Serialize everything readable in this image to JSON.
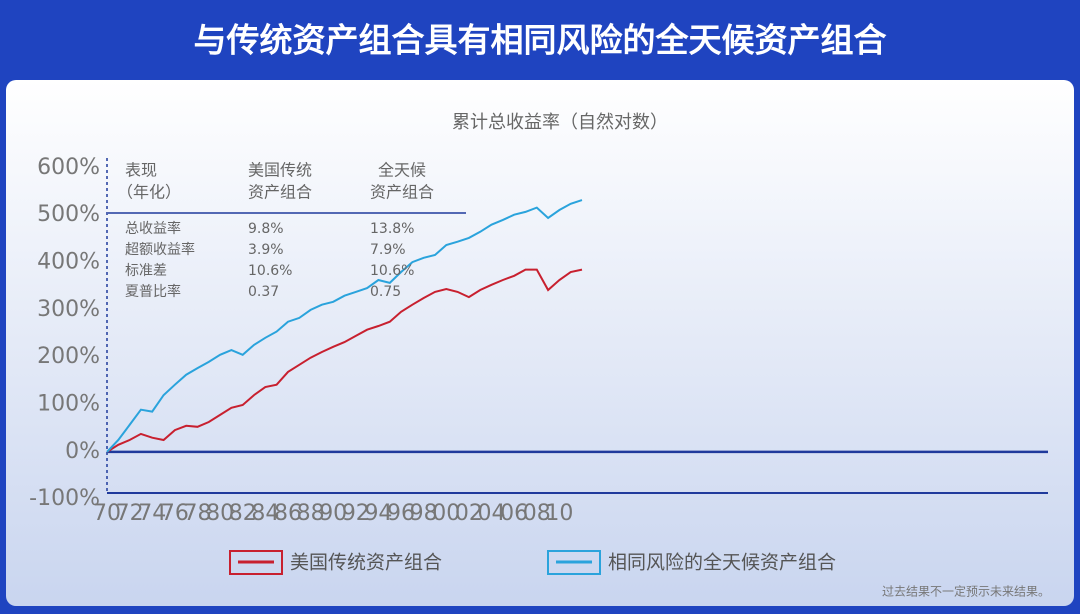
{
  "page_title": "与传统资产组合具有相同风险的全天候资产组合",
  "note": "过去结果不一定预示未来结果。",
  "chart_data": {
    "type": "line",
    "title": "累计总收益率（自然对数）",
    "categories": [
      "70",
      null,
      "72",
      null,
      "74",
      null,
      "76",
      null,
      "78",
      null,
      "80",
      null,
      "82",
      null,
      "84",
      null,
      "86",
      null,
      "88",
      null,
      "90",
      null,
      "92",
      null,
      "94",
      null,
      "96",
      null,
      "98",
      null,
      "00",
      null,
      "02",
      null,
      "04",
      null,
      "06",
      null,
      "08",
      null,
      "10",
      null,
      null
    ],
    "series": [
      {
        "name": "美国传统资产组合",
        "color": "#c8202f",
        "values": [
          0,
          15,
          25,
          38,
          30,
          25,
          46,
          55,
          53,
          63,
          78,
          93,
          99,
          120,
          137,
          142,
          169,
          184,
          199,
          211,
          222,
          232,
          245,
          258,
          266,
          275,
          296,
          311,
          325,
          338,
          344,
          338,
          327,
          342,
          353,
          363,
          372,
          385,
          385,
          342,
          363,
          380,
          385
        ]
      },
      {
        "name": "相同风险的全天候资产组合",
        "color": "#2aa3dc",
        "values": [
          0,
          25,
          57,
          89,
          85,
          120,
          142,
          163,
          177,
          190,
          205,
          215,
          205,
          226,
          241,
          254,
          275,
          283,
          300,
          311,
          317,
          330,
          338,
          346,
          363,
          357,
          380,
          401,
          410,
          416,
          437,
          444,
          452,
          465,
          480,
          490,
          501,
          507,
          516,
          494,
          511,
          524,
          532
        ]
      }
    ],
    "ylim": [
      -100,
      620
    ],
    "yticks": [
      {
        "value": -100,
        "label": "-100%"
      },
      {
        "value": 0,
        "label": "0%"
      },
      {
        "value": 100,
        "label": "100%"
      },
      {
        "value": 200,
        "label": "200%"
      },
      {
        "value": 300,
        "label": "300%"
      },
      {
        "value": 400,
        "label": "400%"
      },
      {
        "value": 500,
        "label": "500%"
      },
      {
        "value": 600,
        "label": "600%"
      }
    ],
    "table": {
      "header": [
        [
          "表现",
          "（年化）"
        ],
        [
          "美国传统",
          "资产组合"
        ],
        [
          "全天候",
          "资产组合"
        ]
      ],
      "rows": [
        [
          "总收益率",
          "9.8%",
          "13.8%"
        ],
        [
          "超额收益率",
          "3.9%",
          "7.9%"
        ],
        [
          "标准差",
          "10.6%",
          "10.6%"
        ],
        [
          "夏普比率",
          "0.37",
          "0.75"
        ]
      ]
    }
  }
}
